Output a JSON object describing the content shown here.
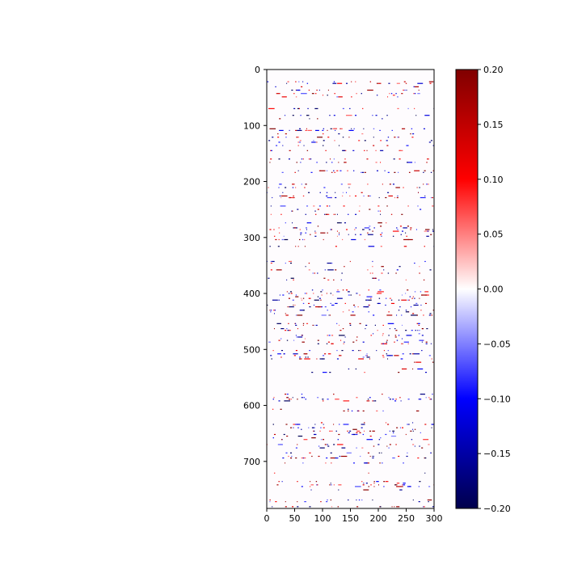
{
  "chart_data": {
    "type": "heatmap",
    "title": "",
    "xlabel": "",
    "ylabel": "",
    "xlim": [
      0,
      300
    ],
    "ylim": [
      784,
      0
    ],
    "x_ticks": [
      0,
      50,
      100,
      150,
      200,
      250,
      300
    ],
    "y_ticks": [
      0,
      100,
      200,
      300,
      400,
      500,
      600,
      700
    ],
    "n_rows": 784,
    "n_cols": 300,
    "value_range": [
      -0.2,
      0.2
    ],
    "colormap": "seismic",
    "colormap_stops": [
      "#00004c",
      "#0000ff",
      "#ffffff",
      "#ff0000",
      "#800000"
    ],
    "background": "#fefcfe",
    "colorbar": {
      "ticks": [
        0.2,
        0.15,
        0.1,
        0.05,
        0.0,
        -0.05,
        -0.1,
        -0.15,
        -0.2
      ],
      "tick_labels": [
        "0.20",
        "0.15",
        "0.10",
        "0.05",
        "0.00",
        "−0.05",
        "−0.10",
        "−0.15",
        "−0.20"
      ]
    },
    "banded_density_rows": [
      [
        20,
        50,
        0.55
      ],
      [
        50,
        100,
        0.45
      ],
      [
        100,
        130,
        0.55
      ],
      [
        130,
        170,
        0.5
      ],
      [
        170,
        190,
        0.25
      ],
      [
        205,
        230,
        0.5
      ],
      [
        240,
        265,
        0.55
      ],
      [
        270,
        300,
        0.6
      ],
      [
        300,
        320,
        0.3
      ],
      [
        340,
        380,
        0.45
      ],
      [
        395,
        440,
        0.6
      ],
      [
        450,
        475,
        0.7
      ],
      [
        475,
        520,
        0.6
      ],
      [
        520,
        560,
        0.45
      ],
      [
        570,
        610,
        0.5
      ],
      [
        620,
        665,
        0.6
      ],
      [
        670,
        700,
        0.5
      ],
      [
        700,
        784,
        0.45
      ]
    ]
  }
}
